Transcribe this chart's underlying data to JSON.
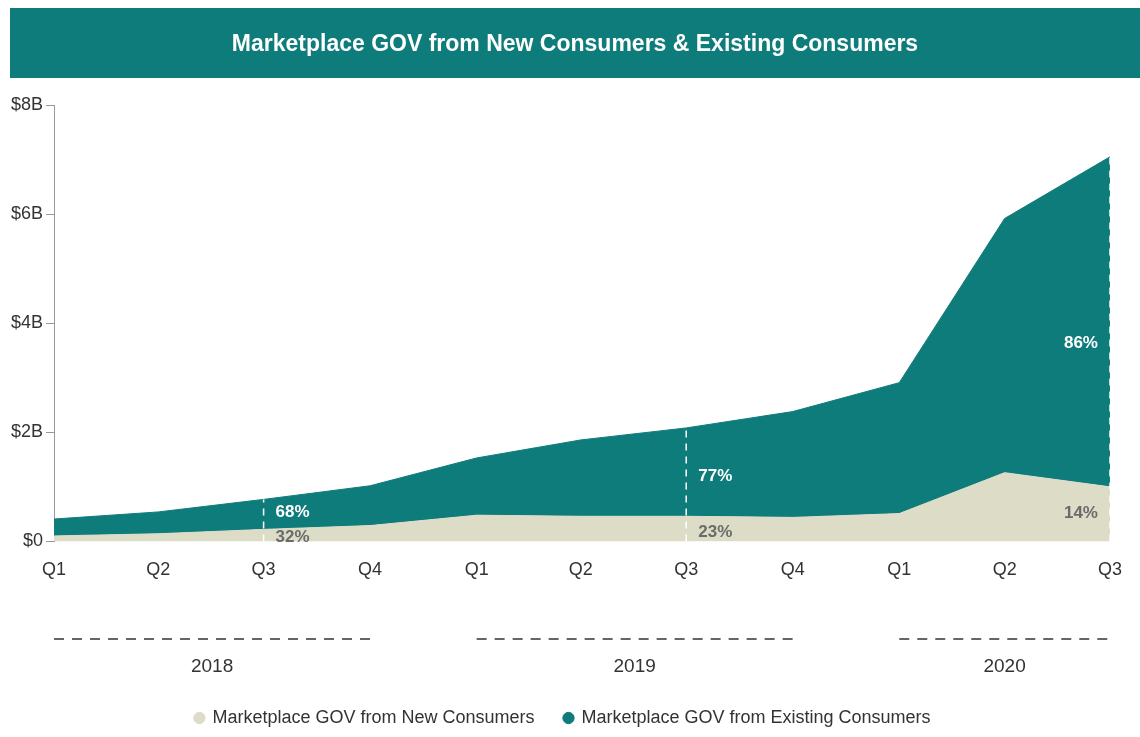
{
  "chart_data": {
    "type": "area",
    "title": "Marketplace GOV from New Consumers & Existing Consumers",
    "x": [
      "2018-01",
      "2018-04",
      "2018-07",
      "2018-10",
      "2019-01",
      "2019-04",
      "2019-07",
      "2019-10",
      "2020-01",
      "2020-04",
      "2020-07"
    ],
    "stacked": true,
    "series": [
      {
        "name": "Marketplace GOV from New Consumers",
        "color": "#dcdcc7",
        "values": [
          0.1,
          0.14,
          0.22,
          0.29,
          0.48,
          0.46,
          0.46,
          0.44,
          0.51,
          1.26,
          1.0
        ]
      },
      {
        "name": "Marketplace GOV from Existing Consumers",
        "color": "#0e7c7b",
        "values": [
          0.31,
          0.4,
          0.55,
          0.73,
          1.05,
          1.4,
          1.62,
          1.94,
          2.4,
          4.66,
          6.05
        ]
      }
    ],
    "xlim": [
      "2018-01",
      "2020-07"
    ],
    "xticks": [
      {
        "value": "2018-01",
        "label": "Q1"
      },
      {
        "value": "2018-04",
        "label": "Q2"
      },
      {
        "value": "2018-07",
        "label": "Q3"
      },
      {
        "value": "2018-10",
        "label": "Q4"
      },
      {
        "value": "2019-01",
        "label": "Q1"
      },
      {
        "value": "2019-04",
        "label": "Q2"
      },
      {
        "value": "2019-07",
        "label": "Q3"
      },
      {
        "value": "2019-10",
        "label": "Q4"
      },
      {
        "value": "2020-01",
        "label": "Q1"
      },
      {
        "value": "2020-04",
        "label": "Q2"
      },
      {
        "value": "2020-07",
        "label": "Q3"
      }
    ],
    "ylim": [
      0,
      8
    ],
    "yticks": [
      {
        "value": 0,
        "label": "$0"
      },
      {
        "value": 2,
        "label": "$2B"
      },
      {
        "value": 4,
        "label": "$4B"
      },
      {
        "value": 6,
        "label": "$6B"
      },
      {
        "value": 8,
        "label": "$8B"
      }
    ],
    "grid": false,
    "legend": "bottom",
    "marker": "none",
    "ref_lines": [
      {
        "axis": "x",
        "value": "2018-07",
        "color": "#ffffff",
        "line_style": "dashed"
      },
      {
        "axis": "x",
        "value": "2019-07",
        "color": "#ffffff",
        "line_style": "dashed"
      },
      {
        "axis": "x",
        "value": "2020-07",
        "color": "#ffffff",
        "line_style": "dashed"
      }
    ],
    "annotations": [
      "2018",
      "2019",
      "2020",
      {
        "text": "68%",
        "x": "2018-07",
        "y": 0.54
      },
      {
        "text": "32%",
        "x": "2018-07",
        "y": 0.08
      },
      {
        "text": "77%",
        "x": "2019-07",
        "y": 1.19
      },
      {
        "text": "23%",
        "x": "2019-07",
        "y": 0.17
      },
      {
        "text": "86%",
        "x": "2020-07",
        "y": 3.64
      },
      {
        "text": "14%",
        "x": "2020-07",
        "y": 0.51
      }
    ]
  }
}
